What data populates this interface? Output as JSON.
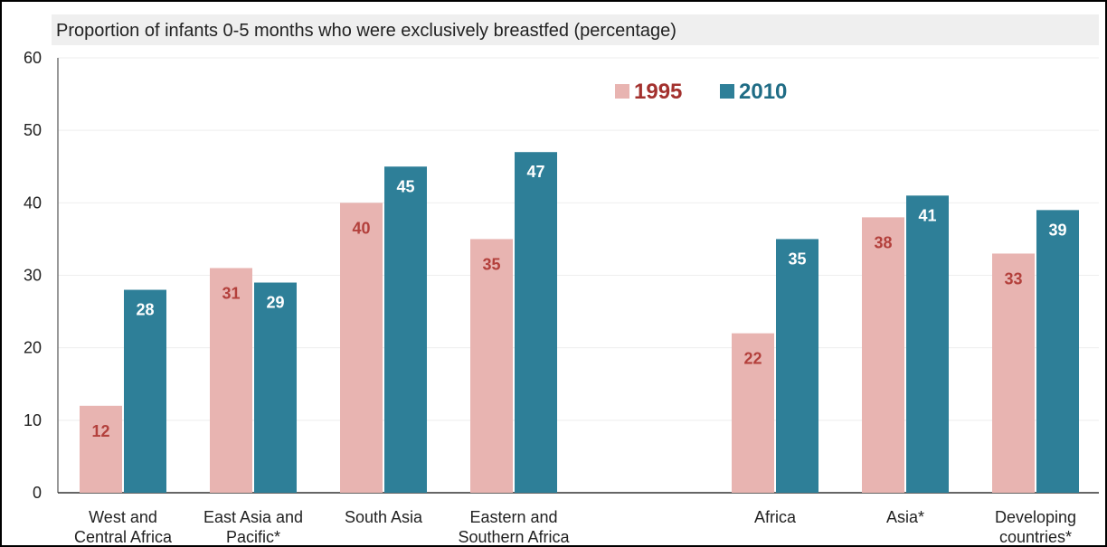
{
  "chart_data": {
    "type": "bar",
    "title": "Proportion of infants 0-5 months who were exclusively breastfed (percentage)",
    "xlabel": "",
    "ylabel": "",
    "ylim": [
      0,
      60
    ],
    "yticks": [
      0,
      10,
      20,
      30,
      40,
      50,
      60
    ],
    "grid": true,
    "legend_position": "top-right",
    "categories": [
      [
        "West and",
        "Central Africa"
      ],
      [
        "East Asia and",
        "Pacific*"
      ],
      [
        "South Asia"
      ],
      [
        "Eastern and",
        "Southern Africa"
      ],
      [
        "Africa"
      ],
      [
        "Asia*"
      ],
      [
        "Developing",
        "countries*"
      ]
    ],
    "series": [
      {
        "name": "1995",
        "color": "#e8b4b1",
        "label_color": "#b3403c",
        "values": [
          12,
          31,
          40,
          35,
          22,
          38,
          33
        ],
        "data_labels": [
          "12",
          "31",
          "40",
          "35",
          "22",
          "38",
          "33"
        ]
      },
      {
        "name": "2010",
        "color": "#2e7f98",
        "label_color": "#ffffff",
        "values": [
          28,
          29,
          45,
          47,
          35,
          41,
          39
        ],
        "data_labels": [
          "28",
          "29",
          "45",
          "47",
          "35",
          "41",
          "39"
        ]
      }
    ]
  }
}
